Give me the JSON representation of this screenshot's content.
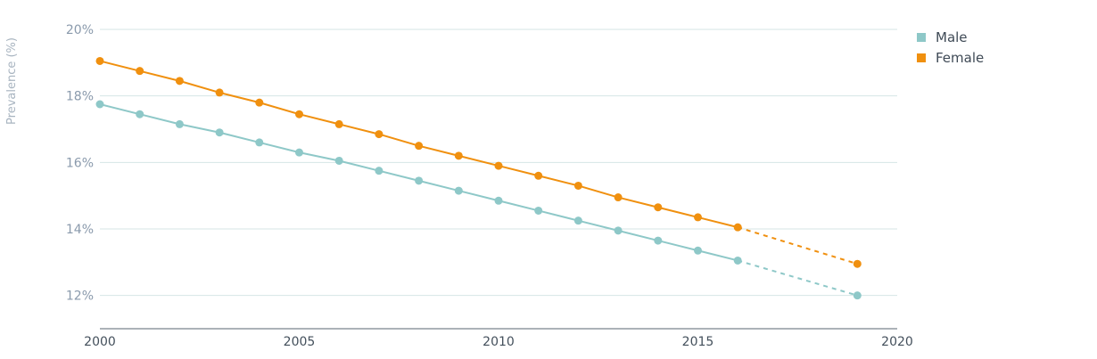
{
  "chart_data": {
    "type": "line",
    "ylabel": "Prevalence (%)",
    "xlabel": "",
    "xlim": [
      2000,
      2020
    ],
    "ylim": [
      11,
      20
    ],
    "x_ticks": [
      "2000",
      "2005",
      "2010",
      "2015",
      "2020"
    ],
    "y_ticks": [
      "12%",
      "14%",
      "16%",
      "18%",
      "20%"
    ],
    "grid": "horizontal",
    "legend_position": "top-right",
    "x": [
      2000,
      2001,
      2002,
      2003,
      2004,
      2005,
      2006,
      2007,
      2008,
      2009,
      2010,
      2011,
      2012,
      2013,
      2014,
      2015,
      2016
    ],
    "series": [
      {
        "name": "Male",
        "color": "#8ec8c8",
        "values": [
          17.75,
          17.45,
          17.15,
          16.9,
          16.6,
          16.3,
          16.05,
          15.75,
          15.45,
          15.15,
          14.85,
          14.55,
          14.25,
          13.95,
          13.65,
          13.35,
          13.05
        ],
        "projection": {
          "x": [
            2016,
            2019
          ],
          "values": [
            13.05,
            12.0
          ]
        }
      },
      {
        "name": "Female",
        "color": "#f0900f",
        "values": [
          19.05,
          18.75,
          18.45,
          18.1,
          17.8,
          17.45,
          17.15,
          16.85,
          16.5,
          16.2,
          15.9,
          15.6,
          15.3,
          14.95,
          14.65,
          14.35,
          14.05
        ],
        "projection": {
          "x": [
            2016,
            2019
          ],
          "values": [
            14.05,
            12.95
          ]
        }
      }
    ]
  }
}
